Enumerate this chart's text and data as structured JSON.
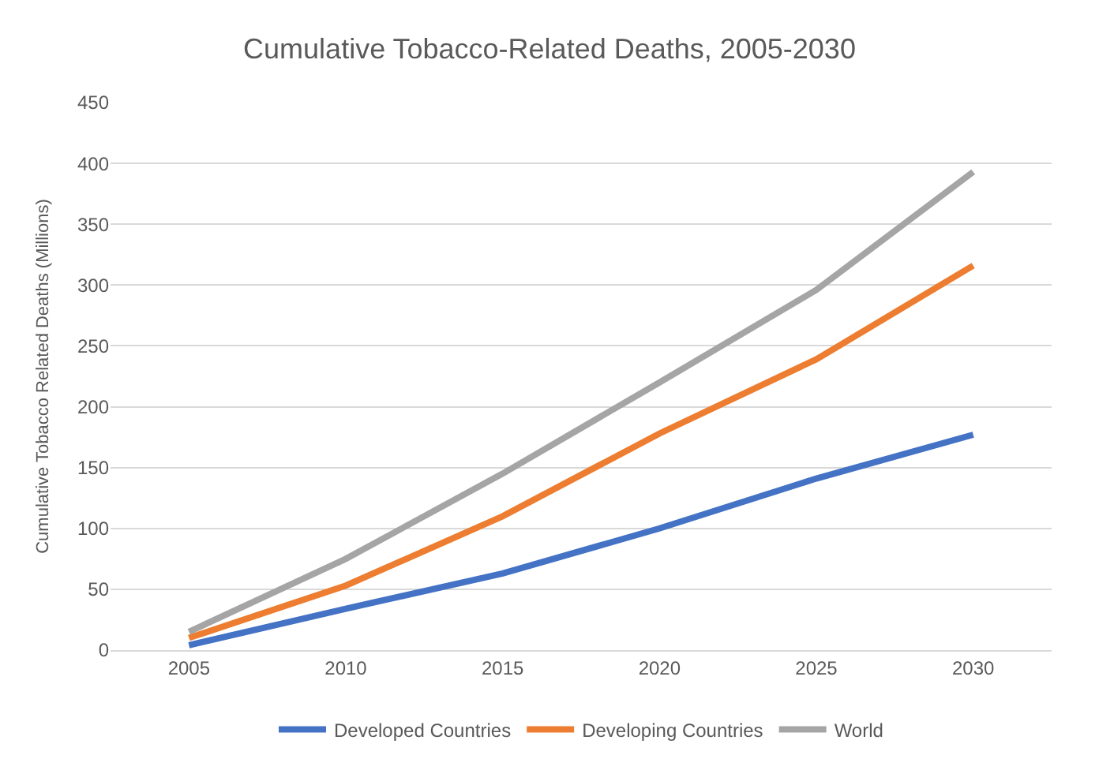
{
  "chart_data": {
    "type": "line",
    "title": "Cumulative Tobacco-Related Deaths, 2005-2030",
    "ylabel": "Cumulative Tobacco Related Deaths (Millions)",
    "categories": [
      "2005",
      "2010",
      "2015",
      "2020",
      "2025",
      "2030"
    ],
    "series": [
      {
        "name": "Developed Countries",
        "color": "#4472c4",
        "values": [
          4,
          34,
          63,
          100,
          141,
          177
        ]
      },
      {
        "name": "Developing Countries",
        "color": "#ed7d31",
        "values": [
          10,
          53,
          110,
          178,
          239,
          316
        ]
      },
      {
        "name": "World",
        "color": "#a5a5a5",
        "values": [
          15,
          75,
          145,
          220,
          296,
          393
        ]
      }
    ],
    "ylim": [
      0,
      450
    ],
    "yticks": [
      0,
      50,
      100,
      150,
      200,
      250,
      300,
      350,
      400,
      450
    ],
    "grid": "y",
    "legend": "bottom",
    "marker": "none",
    "line_style": "solid"
  }
}
